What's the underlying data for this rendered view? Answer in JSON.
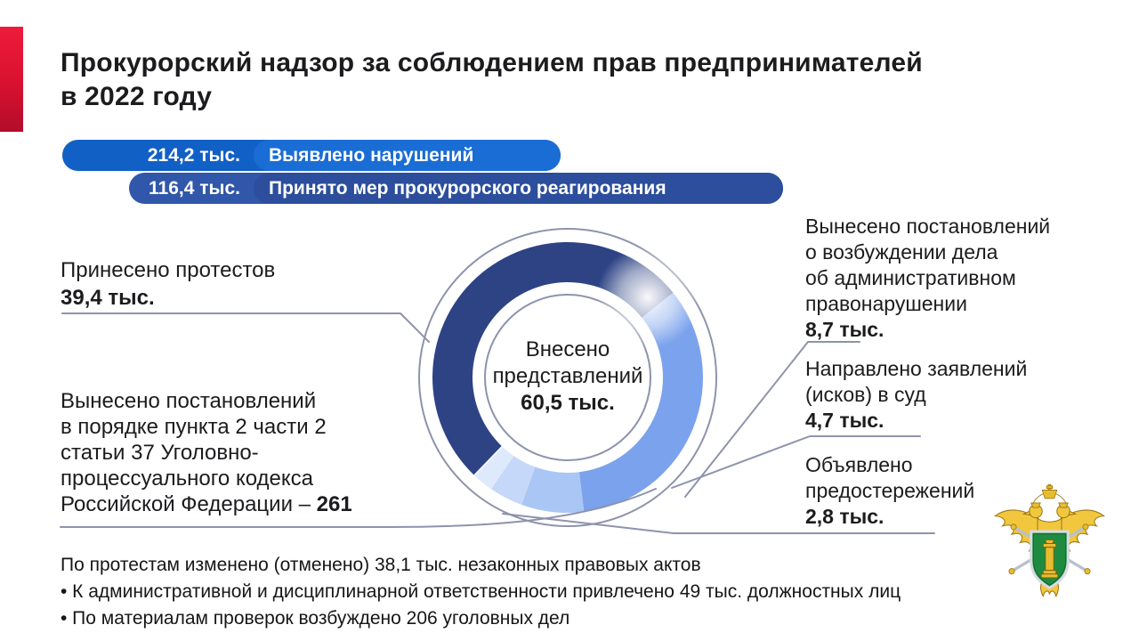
{
  "title": {
    "line1": "Прокурорский надзор за соблюдением прав предпринимателей",
    "line2": "в 2022 году"
  },
  "summary_bars": [
    {
      "value": "214,2 тыс.",
      "label": "Выявлено нарушений",
      "color": "#1a6dd4"
    },
    {
      "value": "116,4 тыс.",
      "label": "Принято мер прокурорского реагирования",
      "color": "#2c4e9c"
    }
  ],
  "chart_data": {
    "type": "pie",
    "subtype": "donut",
    "units": "тыс.",
    "start_angle_deg": 224,
    "legend_position": "callouts-around-donut",
    "center": {
      "label": "Внесено\nпредставлений",
      "value": "60,5 тыс."
    },
    "series": [
      {
        "name": "Внесено представлений",
        "value": 60.5,
        "display": "60,5 тыс.",
        "color": "#2d4384"
      },
      {
        "name": "Принесено протестов",
        "value": 39.4,
        "display": "39,4 тыс.",
        "color": "#7ba2ec"
      },
      {
        "name": "Вынесено постановлений о возбуждении дела об административном правонарушении",
        "value": 8.7,
        "display": "8,7 тыс.",
        "color": "#aac6f4"
      },
      {
        "name": "Направлено заявлений (исков) в суд",
        "value": 4.7,
        "display": "4,7 тыс.",
        "color": "#c6d8f9"
      },
      {
        "name": "Объявлено предостережений",
        "value": 2.8,
        "display": "2,8 тыс.",
        "color": "#dfe9fc"
      },
      {
        "name": "Вынесено постановлений в порядке пункта 2 части 2 статьи 37 УПК РФ",
        "value": 0.261,
        "display": "261",
        "color": "#f0f5fe"
      }
    ]
  },
  "callouts": {
    "protests": {
      "text": "Принесено протестов",
      "value": "39,4 тыс."
    },
    "criminal": {
      "text": "Вынесено постановлений\nв порядке пункта 2 части 2\nстатьи 37 Уголовно-\nпроцессуального кодекса\nРоссийской Федерации –",
      "value": " 261"
    },
    "admin": {
      "text": "Вынесено постановлений\nо возбуждении дела\nоб административном\nправонарушении",
      "value": "8,7 тыс."
    },
    "lawsuits": {
      "text": "Направлено заявлений\n(исков) в суд",
      "value": "4,7 тыс."
    },
    "warnings": {
      "text": "Объявлено\nпредостережений",
      "value": "2,8 тыс."
    }
  },
  "footnotes": [
    "По протестам изменено (отменено) 38,1 тыс. незаконных правовых актов",
    "• К административной и дисциплинарной ответственности привлечено 49 тыс. должностных лиц",
    "• По материалам проверок возбуждено 206 уголовных дел"
  ],
  "colors": {
    "accent_red": "#d8112f",
    "bar1_blue": "#1a6dd4",
    "bar2_blue": "#2c4e9c",
    "leader_line": "#8e93ac",
    "emblem_gold": "#f2c73d",
    "emblem_green": "#1f8b40"
  }
}
